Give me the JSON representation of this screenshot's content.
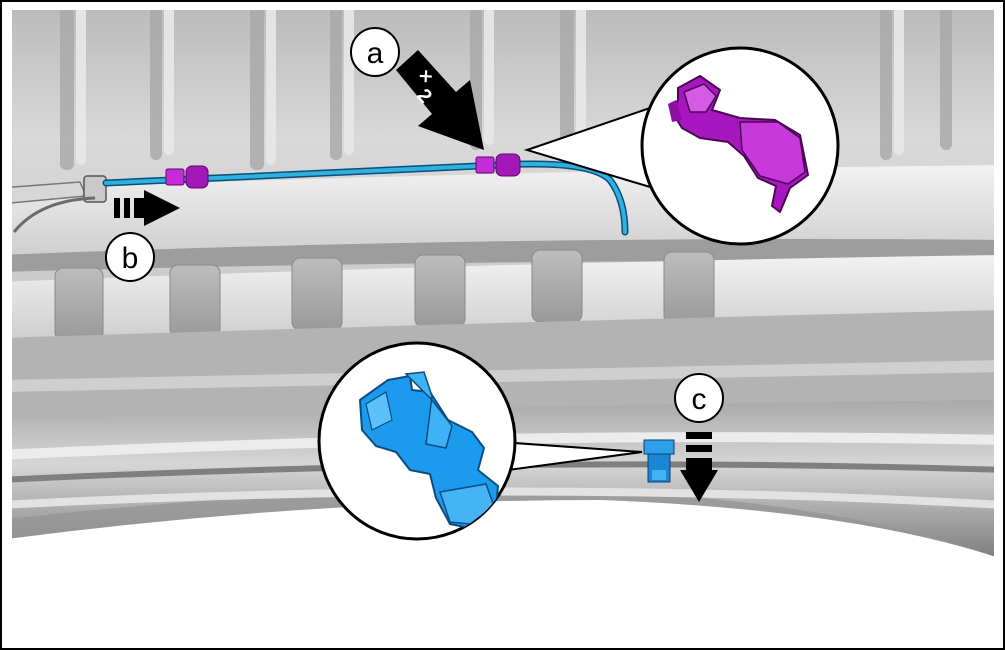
{
  "callouts": {
    "a": "a",
    "b": "b",
    "c": "c"
  },
  "arrow_a_count": "2",
  "colors": {
    "harness": "#2fb1e0",
    "harness_clip": "#b41ec8",
    "clip_part": "#1a9be6",
    "panel_light": "#e6e6e6",
    "panel_dark": "#7a7a7a",
    "outline": "#000000"
  },
  "icons": {
    "arrow_a": "push-arrow-icon",
    "arrow_b": "pull-arrow-icon",
    "arrow_c": "down-arrow-icon"
  }
}
